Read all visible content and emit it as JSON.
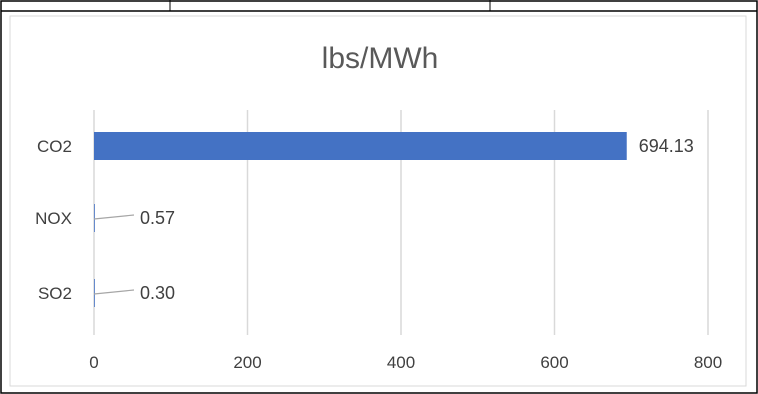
{
  "chart_data": {
    "type": "bar",
    "orientation": "horizontal",
    "title": "lbs/MWh",
    "xlabel": "",
    "ylabel": "",
    "categories": [
      "CO2",
      "NOX",
      "SO2"
    ],
    "values": [
      694.13,
      0.57,
      0.3
    ],
    "data_labels": [
      "694.13",
      "0.57",
      "0.30"
    ],
    "xlim": [
      0,
      800
    ],
    "x_ticks": [
      0,
      200,
      400,
      600,
      800
    ],
    "grid": "vertical",
    "legend": "none",
    "bar_color": "#4472C4",
    "grid_color": "#D9D9D9",
    "leader_color": "#A6A6A6",
    "text_color": "#404040",
    "title_color": "#595959"
  }
}
